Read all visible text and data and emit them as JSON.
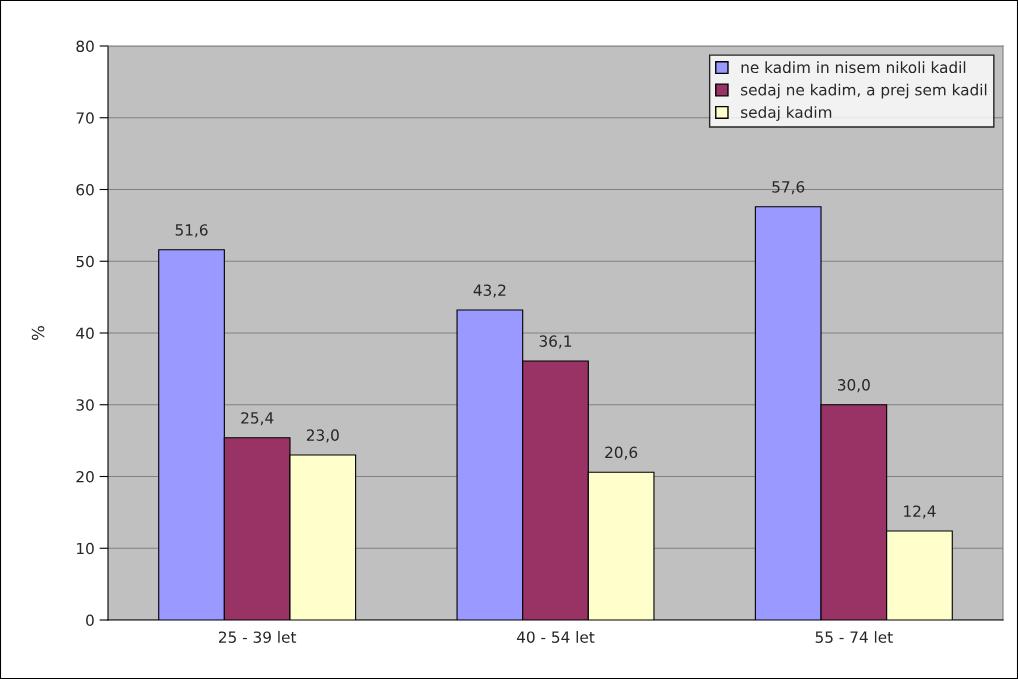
{
  "chart_data": {
    "type": "bar",
    "ylabel": "%",
    "categories": [
      "25 - 39 let",
      "40 - 54 let",
      "55 - 74 let"
    ],
    "series": [
      {
        "name": "ne kadim in nisem nikoli kadil",
        "color": "#9999ff",
        "values": [
          51.6,
          43.2,
          57.6
        ],
        "value_labels": [
          "51,6",
          "43,2",
          "57,6"
        ]
      },
      {
        "name": "sedaj ne kadim, a prej sem kadil",
        "color": "#993366",
        "values": [
          25.4,
          36.1,
          30.0
        ],
        "value_labels": [
          "25,4",
          "36,1",
          "30,0"
        ]
      },
      {
        "name": "sedaj kadim",
        "color": "#ffffcc",
        "values": [
          23.0,
          20.6,
          12.4
        ],
        "value_labels": [
          "23,0",
          "20,6",
          "12,4"
        ]
      }
    ],
    "ylim": [
      0,
      80
    ],
    "yticks": [
      0,
      10,
      20,
      30,
      40,
      50,
      60,
      70,
      80
    ],
    "grid": "y",
    "legend": "top right"
  }
}
